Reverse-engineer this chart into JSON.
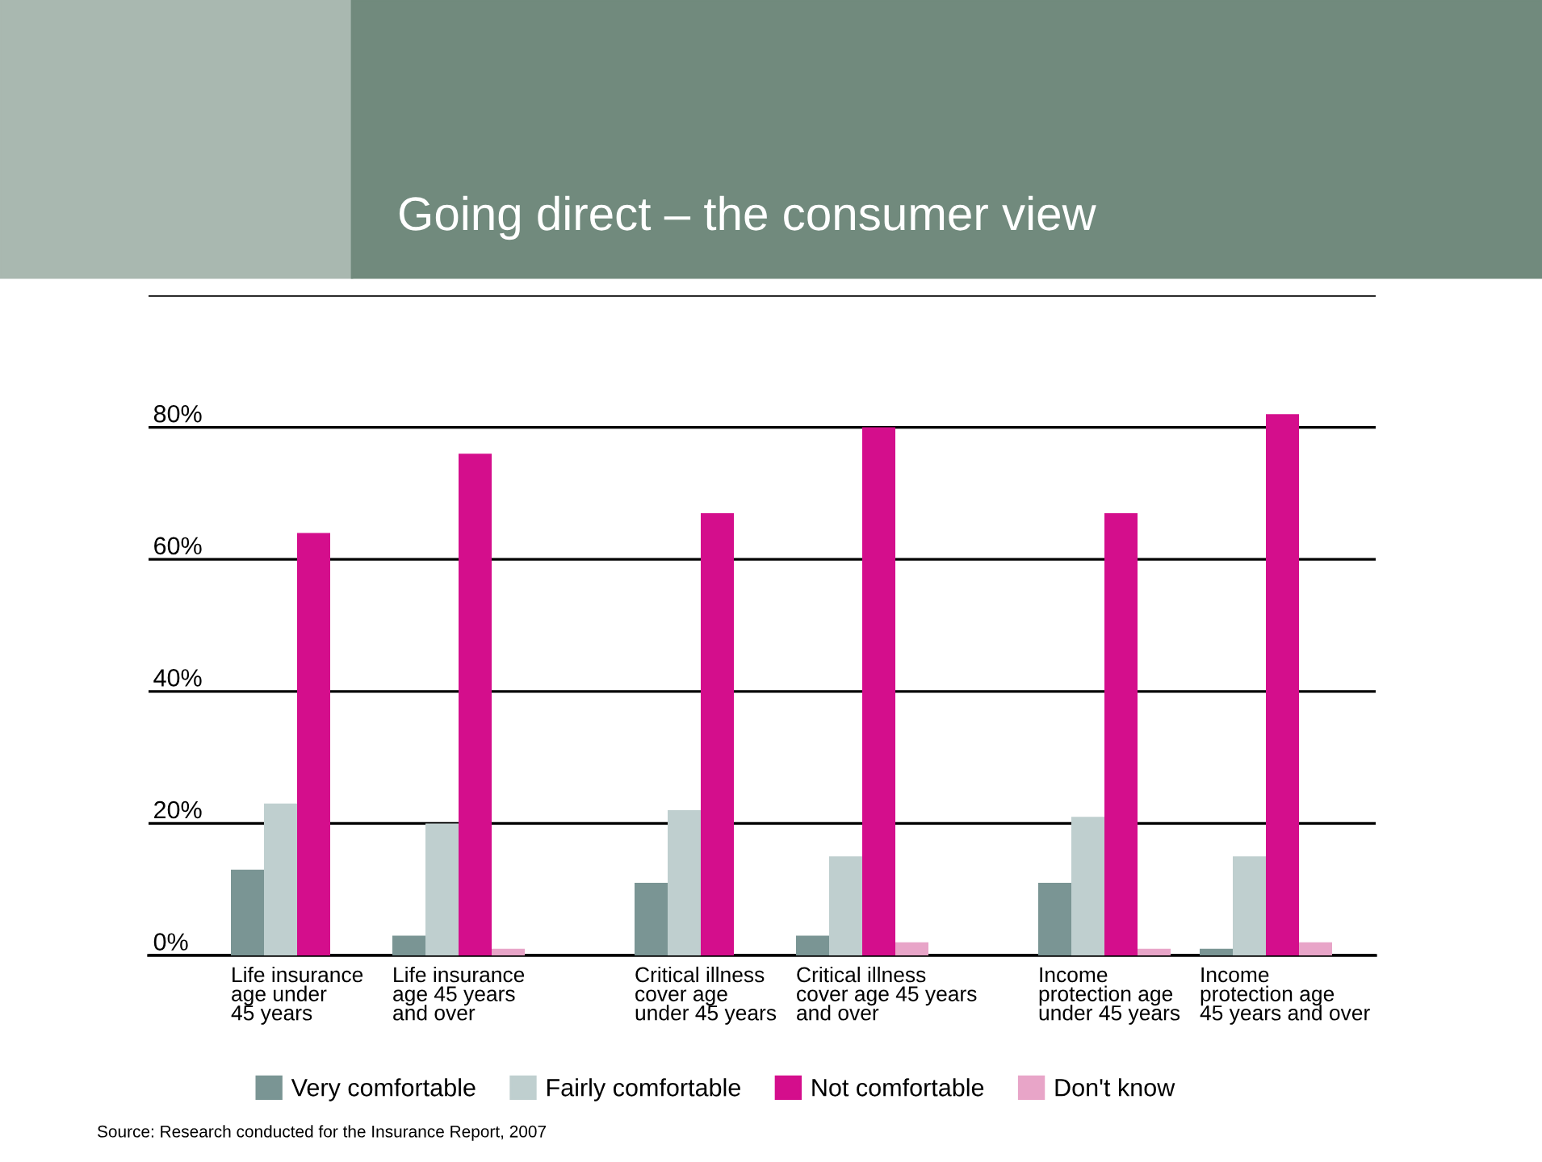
{
  "chart_data": {
    "type": "bar",
    "title": "Going direct – the consumer view",
    "categories": [
      "Life insurance\nage under\n45 years",
      "Life insurance\nage 45 years\nand over",
      "Critical illness\ncover age\nunder 45 years",
      "Critical illness\ncover age 45 years\nand over",
      "Income\nprotection age\nunder 45 years",
      "Income\nprotection age\n45 years and over"
    ],
    "series": [
      {
        "name": "Very comfortable",
        "color": "#7a9594",
        "values": [
          13,
          3,
          11,
          3,
          11,
          1
        ]
      },
      {
        "name": "Fairly comfortable",
        "color": "#bfcfcf",
        "values": [
          23,
          20,
          22,
          15,
          21,
          15
        ]
      },
      {
        "name": "Not comfortable",
        "color": "#d40e8c",
        "values": [
          64,
          76,
          67,
          80,
          67,
          82
        ]
      },
      {
        "name": "Don't know",
        "color": "#e8a5c8",
        "values": [
          0,
          1,
          0,
          2,
          1,
          2
        ]
      }
    ],
    "ylim": [
      0,
      100
    ],
    "yticks": [
      {
        "value": 0,
        "label": "0%"
      },
      {
        "value": 20,
        "label": "20%"
      },
      {
        "value": 40,
        "label": "40%"
      },
      {
        "value": 60,
        "label": "60%"
      },
      {
        "value": 80,
        "label": "80%"
      },
      {
        "value": 100,
        "label": null
      }
    ],
    "grid": "y",
    "legend": "bottom",
    "annotations": [
      "Source: Research conducted for the Insurance Report, 2007"
    ]
  }
}
